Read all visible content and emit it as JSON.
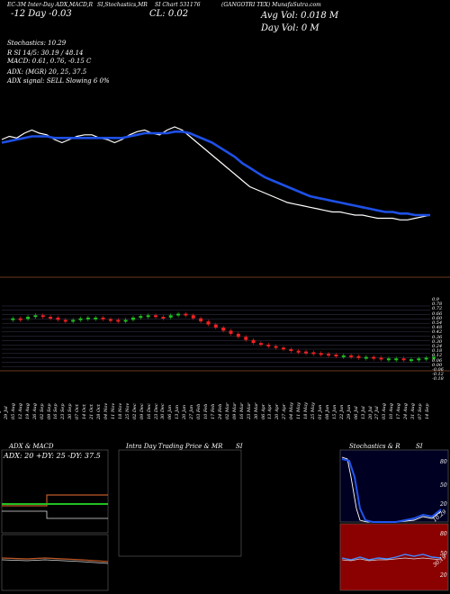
{
  "header": {
    "line1_left": "EC-3M Inter-Day ADX,MACD,R",
    "line1_mid": "SI,Stochastics,MR",
    "line1_mid2": "SI Chart 531176",
    "line1_right": "(GANGOTRI TEX) MunafaSutra.com",
    "change": "-12 Day  -0.03",
    "close": "CL: 0.02",
    "avg_vol": "Avg Vol: 0.018  M",
    "day_vol": "Day Vol: 0   M"
  },
  "indicators": {
    "stochastics": "Stochastics: 10.29",
    "rsi": "R                SI 14/5: 30.19 / 48.14",
    "macd": "MACD: 0.61,  0.76,  -0.15 C",
    "adx": "ADX:                    (MGR) 20,  25,  37.5",
    "adx_signal": "ADX  signal: SELL  Slowing 6 0%"
  },
  "price_axis": [
    "0.9",
    "0.78",
    "0.72",
    "0.66",
    "0.60",
    "0.54",
    "0.48",
    "0.42",
    "0.36",
    "0.30",
    "0.24",
    "0.18",
    "0.12",
    "0.06",
    "0.00",
    "-0.06",
    "-0.12",
    "-0.18"
  ],
  "dates": [
    "22 Jul",
    "29 Jul",
    "05 Aug",
    "12 Aug",
    "19 Aug",
    "26 Aug",
    "02 Sep",
    "09 Sep",
    "16 Sep",
    "23 Sep",
    "30 Sep",
    "07 Oct",
    "14 Oct",
    "21 Oct",
    "28 Oct",
    "04 Nov",
    "11 Nov",
    "18 Nov",
    "25 Nov",
    "02 Dec",
    "09 Dec",
    "16 Dec",
    "23 Dec",
    "30 Dec",
    "06 Jan",
    "13 Jan",
    "20 Jan",
    "27 Jan",
    "03 Feb",
    "10 Feb",
    "17 Feb",
    "24 Feb",
    "02 Mar",
    "09 Mar",
    "16 Mar",
    "23 Mar",
    "30 Mar",
    "06 Apr",
    "13 Apr",
    "20 Apr",
    "27 Apr",
    "04 May",
    "11 May",
    "18 May",
    "25 May",
    "01 Jun",
    "08 Jun",
    "15 Jun",
    "22 Jun",
    "29 Jun",
    "06 Jul",
    "13 Jul",
    "20 Jul",
    "27 Jul",
    "03 Aug",
    "10 Aug",
    "17 Aug",
    "24 Aug",
    "31 Aug",
    "07 Sep",
    "14 Sep"
  ],
  "panels": {
    "adx_title": "ADX  & MACD",
    "adx_label": "ADX: 20  +DY: 25  -DY: 37.5",
    "intraday_title": "Intra  Day Trading Price  & MR",
    "intraday_title2": "SI",
    "stoch_title": "Stochastics & R",
    "stoch_title2": "SI",
    "stoch_axis": [
      "80",
      "50",
      "20"
    ],
    "rsi_axis": [
      "80",
      "50",
      "20"
    ],
    "stoch_value": "10.29",
    "rsi_value": "30.19"
  },
  "chart_data": {
    "type": "line",
    "series": [
      {
        "values": [
          0.6,
          0.62,
          0.61,
          0.64,
          0.66,
          0.64,
          0.63,
          0.6,
          0.58,
          0.6,
          0.62,
          0.63,
          0.63,
          0.61,
          0.6,
          0.58,
          0.6,
          0.63,
          0.65,
          0.66,
          0.64,
          0.63,
          0.66,
          0.68,
          0.66,
          0.62,
          0.58,
          0.54,
          0.5,
          0.46,
          0.42,
          0.38,
          0.34,
          0.3,
          0.28,
          0.26,
          0.24,
          0.22,
          0.2,
          0.19,
          0.18,
          0.17,
          0.16,
          0.15,
          0.14,
          0.14,
          0.13,
          0.12,
          0.12,
          0.11,
          0.1,
          0.1,
          0.1,
          0.09,
          0.09,
          0.1,
          0.11,
          0.12
        ]
      },
      {
        "values": [
          0.58,
          0.59,
          0.6,
          0.61,
          0.62,
          0.62,
          0.62,
          0.61,
          0.61,
          0.61,
          0.61,
          0.61,
          0.61,
          0.61,
          0.61,
          0.61,
          0.61,
          0.62,
          0.63,
          0.64,
          0.64,
          0.64,
          0.64,
          0.65,
          0.65,
          0.64,
          0.62,
          0.6,
          0.58,
          0.55,
          0.52,
          0.49,
          0.45,
          0.42,
          0.39,
          0.36,
          0.34,
          0.32,
          0.3,
          0.28,
          0.26,
          0.24,
          0.23,
          0.22,
          0.21,
          0.2,
          0.19,
          0.18,
          0.17,
          0.16,
          0.15,
          0.14,
          0.14,
          0.13,
          0.13,
          0.12,
          0.12,
          0.12
        ]
      }
    ]
  }
}
